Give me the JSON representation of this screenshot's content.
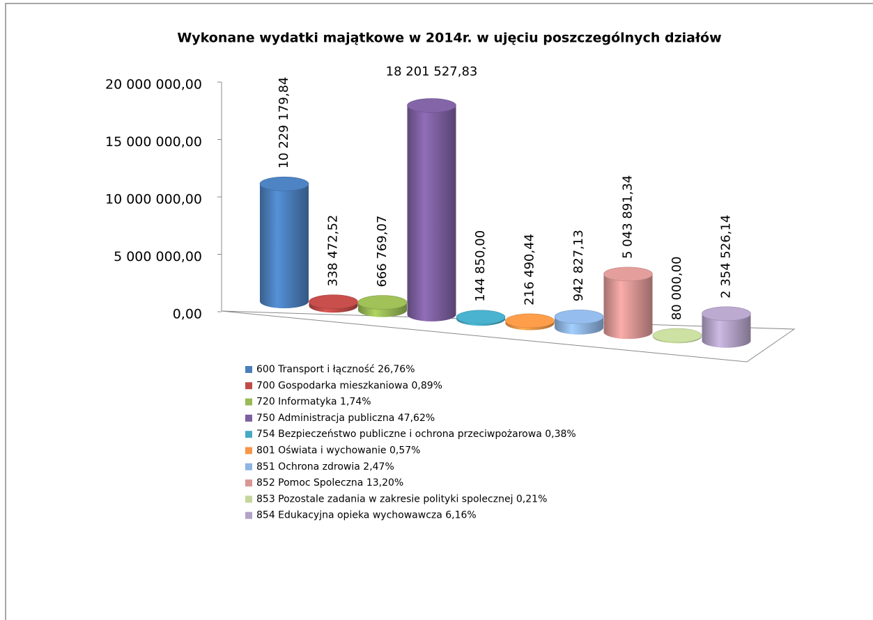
{
  "chart_data": {
    "type": "bar3d",
    "title": "Wykonane wydatki majątkowe  w 2014r. w ujęciu poszczególnych działów",
    "categories": [
      "600 Transport i łączność 26,76%",
      "700 Gospodarka mieszkaniowa 0,89%",
      "720 Informatyka 1,74%",
      "750 Administracja publiczna 47,62%",
      "754 Bezpieczeństwo publiczne i ochrona przeciwpożarowa 0,38%",
      "801 Oświata i wychowanie 0,57%",
      "851 Ochrona zdrowia 2,47%",
      "852 Pomoc Spoleczna 13,20%",
      "853 Pozostale zadania w zakresie polityki spolecznej 0,21%",
      "854 Edukacyjna opieka wychowawcza 6,16%"
    ],
    "values": [
      10229179.84,
      338472.52,
      666769.07,
      18201527.83,
      144850.0,
      216490.44,
      942827.13,
      5043891.34,
      80000.0,
      2354526.14
    ],
    "value_labels": [
      "10 229 179,84",
      "338 472,52",
      "666 769,07",
      "18 201 527,83",
      "144 850,00",
      "216 490,44",
      "942 827,13",
      "5 043 891,34",
      "80 000,00",
      "2 354 526,14"
    ],
    "colors": [
      "#4a7ebb",
      "#be4b48",
      "#98b954",
      "#7d60a0",
      "#46aac5",
      "#f79646",
      "#8eb4e3",
      "#d99694",
      "#c3d69b",
      "#b3a2c7"
    ],
    "ylim": [
      0,
      20000000
    ],
    "yticks": [
      {
        "value": 0,
        "label": "0,00"
      },
      {
        "value": 5000000,
        "label": "5 000 000,00"
      },
      {
        "value": 10000000,
        "label": "10 000 000,00"
      },
      {
        "value": 15000000,
        "label": "15 000 000,00"
      },
      {
        "value": 20000000,
        "label": "20 000 000,00"
      }
    ],
    "legend": "bottom"
  }
}
